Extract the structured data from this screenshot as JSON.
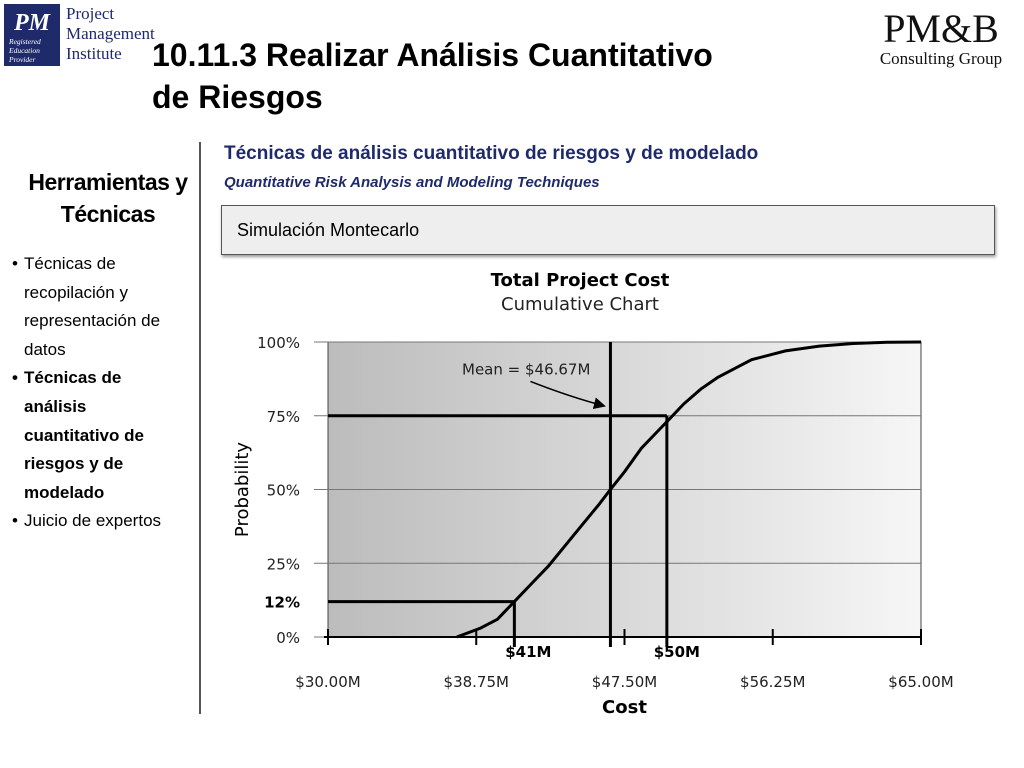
{
  "header": {
    "pmi_logo": {
      "mark_text": "PM",
      "mark_caption": [
        "Registered",
        "Education",
        "Provider"
      ],
      "lines": [
        "Project",
        "Management",
        "Institute"
      ]
    },
    "title_line1": "10.11.3 Realizar Análisis Cuantitativo",
    "title_line2": "de Riesgos",
    "pmb_logo": {
      "main": "PM&B",
      "sub": "Consulting Group"
    }
  },
  "sidebar": {
    "heading_line1": "Herramientas y",
    "heading_line2": "Técnicas",
    "items": [
      {
        "lines": [
          "Técnicas de",
          "recopilación y",
          "representación de",
          "datos"
        ],
        "bold": false
      },
      {
        "lines": [
          "Técnicas de",
          "análisis",
          "cuantitativo de",
          "riesgos y de",
          "modelado"
        ],
        "bold": true
      },
      {
        "lines": [
          "Juicio de expertos"
        ],
        "bold": false
      }
    ]
  },
  "main": {
    "section_title": "Técnicas de análisis cuantitativo de riesgos y de modelado",
    "section_subtitle": "Quantitative Risk Analysis and Modeling Techniques",
    "box_label": "Simulación Montecarlo"
  },
  "chart_data": {
    "type": "line",
    "title": "Total Project Cost",
    "subtitle": "Cumulative Chart",
    "xlabel": "Cost",
    "ylabel": "Probability",
    "xlim": [
      30.0,
      65.0
    ],
    "ylim": [
      0,
      100
    ],
    "x_ticks": [
      30.0,
      38.75,
      47.5,
      56.25,
      65.0
    ],
    "x_tick_labels": [
      "$30.00M",
      "$38.75M",
      "$47.50M",
      "$56.25M",
      "$65.00M"
    ],
    "y_ticks": [
      0,
      25,
      50,
      75,
      100
    ],
    "y_tick_labels": [
      "0%",
      "25%",
      "50%",
      "75%",
      "100%"
    ],
    "grid": "horizontal",
    "series": [
      {
        "x": [
          37.6,
          39.0,
          40.0,
          41.0,
          42.0,
          43.0,
          44.0,
          45.0,
          46.0,
          46.67,
          47.5,
          48.5,
          49.5,
          50.0,
          51.0,
          52.0,
          53.0,
          54.0,
          55.0,
          57.0,
          59.0,
          61.0,
          63.0,
          65.0
        ],
        "y": [
          0,
          3,
          6,
          12,
          18,
          24,
          31,
          38,
          45,
          50,
          56,
          64,
          70,
          73,
          79,
          84,
          88,
          91,
          94,
          97,
          98.6,
          99.5,
          99.9,
          100
        ]
      }
    ],
    "annotations": [
      {
        "text": "Mean = $46.67M",
        "x": 46.67
      },
      {
        "text": "$41M",
        "x": 41.0,
        "y": 12
      },
      {
        "text": "$50M",
        "x": 50.0,
        "y": 75
      },
      {
        "text": "12%",
        "y": 12
      }
    ],
    "colors": {
      "shade_dark": "#bdbdbd",
      "shade_light": "#f5f5f5",
      "line": "#000000"
    }
  }
}
